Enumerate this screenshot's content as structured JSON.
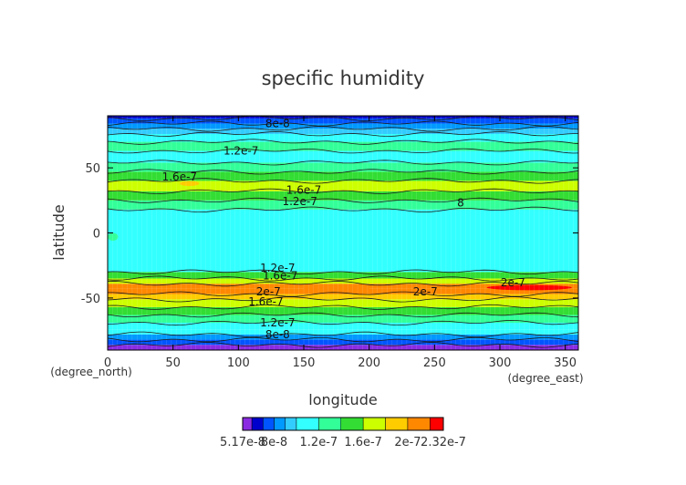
{
  "chart_data": {
    "type": "heatmap",
    "title": "specific humidity",
    "xlabel": "longitude",
    "ylabel": "latitude",
    "x_unit_label": "(degree_east)",
    "y_unit_label": "(degree_north)",
    "xlim": [
      0,
      360
    ],
    "ylim": [
      -90,
      90
    ],
    "x_ticks": [
      0,
      50,
      100,
      150,
      200,
      250,
      300,
      350
    ],
    "y_ticks": [
      -50,
      0,
      50
    ],
    "colorbar": {
      "levels": [
        5.17e-08,
        6e-08,
        7e-08,
        8e-08,
        9e-08,
        1e-07,
        1.2e-07,
        1.4e-07,
        1.6e-07,
        1.8e-07,
        2e-07,
        2.2e-07,
        2.32e-07
      ],
      "colors": [
        "#8a2be2",
        "#0000cc",
        "#0055ff",
        "#0099ff",
        "#33ccff",
        "#33ffff",
        "#33ff99",
        "#33dd33",
        "#ccff00",
        "#ffcc00",
        "#ff8800",
        "#ff0000",
        "#ff9999"
      ],
      "tick_labels": [
        "5.17e-8",
        "8e-8",
        "1.2e-7",
        "1.6e-7",
        "2e-7",
        "2.32e-7"
      ],
      "tick_values": [
        5.17e-08,
        8e-08,
        1.2e-07,
        1.6e-07,
        2e-07,
        2.32e-07
      ]
    },
    "latitude_bands": [
      {
        "lat": [
          -90,
          -86
        ],
        "value": 5.5e-08
      },
      {
        "lat": [
          -86,
          -82
        ],
        "value": 7e-08
      },
      {
        "lat": [
          -82,
          -78
        ],
        "value": 8.5e-08
      },
      {
        "lat": [
          -78,
          -74
        ],
        "value": 1e-07
      },
      {
        "lat": [
          -74,
          -69
        ],
        "value": 1.1e-07
      },
      {
        "lat": [
          -69,
          -63
        ],
        "value": 1.3e-07
      },
      {
        "lat": [
          -63,
          -57
        ],
        "value": 1.5e-07
      },
      {
        "lat": [
          -57,
          -51
        ],
        "value": 1.7e-07
      },
      {
        "lat": [
          -51,
          -47
        ],
        "value": 1.9e-07
      },
      {
        "lat": [
          -47,
          -43
        ],
        "value": 2.05e-07
      },
      {
        "lat": [
          -43,
          -39
        ],
        "value": 2.15e-07
      },
      {
        "lat": [
          -39,
          -35
        ],
        "value": 1.75e-07
      },
      {
        "lat": [
          -35,
          -30
        ],
        "value": 1.4e-07
      },
      {
        "lat": [
          -30,
          18
        ],
        "value": 1.1e-07
      },
      {
        "lat": [
          18,
          25
        ],
        "value": 1.3e-07
      },
      {
        "lat": [
          25,
          32
        ],
        "value": 1.5e-07
      },
      {
        "lat": [
          32,
          40
        ],
        "value": 1.7e-07
      },
      {
        "lat": [
          40,
          47
        ],
        "value": 1.5e-07
      },
      {
        "lat": [
          47,
          54
        ],
        "value": 1.3e-07
      },
      {
        "lat": [
          54,
          63
        ],
        "value": 1.1e-07
      },
      {
        "lat": [
          63,
          70
        ],
        "value": 1.3e-07
      },
      {
        "lat": [
          70,
          76
        ],
        "value": 1.05e-07
      },
      {
        "lat": [
          76,
          80
        ],
        "value": 9.5e-08
      },
      {
        "lat": [
          80,
          84
        ],
        "value": 8.5e-08
      },
      {
        "lat": [
          84,
          88
        ],
        "value": 7.5e-08
      },
      {
        "lat": [
          88,
          90
        ],
        "value": 6e-08
      }
    ],
    "patches": [
      {
        "lon": [
          290,
          355
        ],
        "lat": [
          -44,
          -40
        ],
        "value": 2.25e-07
      },
      {
        "lon": [
          150,
          200
        ],
        "lat": [
          -45,
          -41
        ],
        "value": 2.1e-07
      },
      {
        "lon": [
          55,
          70
        ],
        "lat": [
          36,
          40
        ],
        "value": 1.85e-07
      },
      {
        "lon": [
          0,
          8
        ],
        "lat": [
          -6,
          0
        ],
        "value": 1.35e-07
      }
    ],
    "contour_labels": [
      {
        "text": "8e-8",
        "lon": 130,
        "lat": 84
      },
      {
        "text": "1.2e-7",
        "lon": 102,
        "lat": 63
      },
      {
        "text": "1.6e-7",
        "lon": 55,
        "lat": 43
      },
      {
        "text": "1.6e-7",
        "lon": 150,
        "lat": 33
      },
      {
        "text": "1.2e-7",
        "lon": 147,
        "lat": 24
      },
      {
        "text": "8",
        "lon": 270,
        "lat": 23
      },
      {
        "text": "1.2e-7",
        "lon": 130,
        "lat": -27
      },
      {
        "text": "1.6e-7",
        "lon": 132,
        "lat": -33
      },
      {
        "text": "2e-7",
        "lon": 123,
        "lat": -45
      },
      {
        "text": "1.6e-7",
        "lon": 121,
        "lat": -53
      },
      {
        "text": "2e-7",
        "lon": 243,
        "lat": -45
      },
      {
        "text": "2e-7",
        "lon": 310,
        "lat": -38
      },
      {
        "text": "1.2e-7",
        "lon": 130,
        "lat": -69
      },
      {
        "text": "8e-8",
        "lon": 130,
        "lat": -78
      }
    ]
  }
}
